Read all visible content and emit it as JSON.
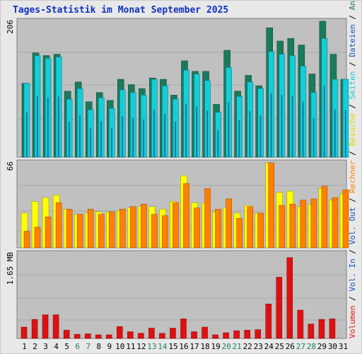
{
  "chart_data": [
    {
      "type": "bar",
      "title": "Tages-Statistik im Monat September 2025",
      "categories": [
        "1",
        "2",
        "3",
        "4",
        "5",
        "6",
        "7",
        "8",
        "9",
        "10",
        "11",
        "12",
        "13",
        "14",
        "15",
        "16",
        "17",
        "18",
        "19",
        "20",
        "21",
        "22",
        "23",
        "24",
        "25",
        "26",
        "27",
        "28",
        "29",
        "30",
        "31"
      ],
      "weekend_days": [
        "6",
        "7",
        "13",
        "14",
        "20",
        "21",
        "27",
        "28"
      ],
      "ymax_label": "206",
      "ymax": 206,
      "series": [
        {
          "name": "Anfragen",
          "color": "#1a7a5c",
          "values": [
            112,
            158,
            154,
            156,
            100,
            114,
            84,
            98,
            86,
            118,
            110,
            104,
            120,
            118,
            94,
            146,
            130,
            130,
            80,
            162,
            100,
            124,
            108,
            196,
            176,
            180,
            170,
            126,
            206,
            156,
            118
          ]
        },
        {
          "name": "Dateien",
          "color": "#14ced8",
          "values": [
            112,
            154,
            150,
            152,
            88,
            104,
            72,
            90,
            74,
            102,
            98,
            94,
            118,
            108,
            88,
            132,
            126,
            116,
            68,
            136,
            92,
            114,
            104,
            160,
            156,
            154,
            138,
            98,
            180,
            118,
            118
          ]
        },
        {
          "name": "Seiten",
          "color": "#0090d0",
          "values": [
            110,
            150,
            146,
            148,
            86,
            102,
            70,
            88,
            72,
            100,
            96,
            92,
            116,
            106,
            86,
            130,
            124,
            114,
            66,
            134,
            90,
            112,
            102,
            156,
            152,
            150,
            136,
            96,
            176,
            116,
            116
          ]
        }
      ],
      "legend": [
        "Anfragen",
        "Dateien",
        "Seiten"
      ]
    },
    {
      "type": "bar",
      "categories": [
        "1",
        "2",
        "3",
        "4",
        "5",
        "6",
        "7",
        "8",
        "9",
        "10",
        "11",
        "12",
        "13",
        "14",
        "15",
        "16",
        "17",
        "18",
        "19",
        "20",
        "21",
        "22",
        "23",
        "24",
        "25",
        "26",
        "27",
        "28",
        "29",
        "30",
        "31"
      ],
      "ymax_label": "66",
      "ymax": 66,
      "series": [
        {
          "name": "Besuche",
          "color": "#ffff00",
          "values": [
            27,
            36,
            39,
            41,
            30,
            26,
            27,
            28,
            28,
            29,
            31,
            32,
            32,
            30,
            36,
            56,
            35,
            35,
            28,
            31,
            27,
            33,
            27,
            66,
            43,
            44,
            32,
            34,
            46,
            37,
            42
          ]
        },
        {
          "name": "Rechner",
          "color": "#ff8000",
          "values": [
            13,
            16,
            24,
            35,
            30,
            26,
            30,
            26,
            28,
            30,
            32,
            34,
            26,
            25,
            35,
            50,
            31,
            46,
            30,
            38,
            23,
            32,
            27,
            66,
            33,
            34,
            37,
            38,
            48,
            39,
            45
          ]
        }
      ],
      "legend": [
        "Besuche",
        "Rechner"
      ]
    },
    {
      "type": "bar",
      "ymax_label": "1.65 MB",
      "categories": [
        "1",
        "2",
        "3",
        "4",
        "5",
        "6",
        "7",
        "8",
        "9",
        "10",
        "11",
        "12",
        "13",
        "14",
        "15",
        "16",
        "17",
        "18",
        "19",
        "20",
        "21",
        "22",
        "23",
        "24",
        "25",
        "26",
        "27",
        "28",
        "29",
        "30",
        "31"
      ],
      "series": [
        {
          "name": "Volumen",
          "color": "#e01010",
          "values": [
            0.22,
            0.37,
            0.46,
            0.46,
            0.16,
            0.08,
            0.09,
            0.07,
            0.07,
            0.23,
            0.13,
            0.1,
            0.2,
            0.1,
            0.2,
            0.38,
            0.13,
            0.22,
            0.07,
            0.11,
            0.15,
            0.16,
            0.17,
            0.67,
            1.19,
            1.57,
            0.55,
            0.28,
            0.37,
            0.38,
            0.0
          ]
        }
      ],
      "legend": [
        "Volumen",
        "Vol. In",
        "Vol. Out"
      ]
    }
  ],
  "legend_text": {
    "top": [
      {
        "text": "Anfragen",
        "color": "#1a7a5c"
      },
      {
        "text": "Dateien",
        "color": "#1050c0"
      },
      {
        "text": "Seiten",
        "color": "#14c8d8"
      },
      {
        "text": "Besuche",
        "color": "#d8d800"
      },
      {
        "text": "Rechner",
        "color": "#ff8000"
      },
      {
        "text": "Vol. Out",
        "color": "#1050c0"
      },
      {
        "text": "Vol. In",
        "color": "#1050c0"
      },
      {
        "text": "Volumen",
        "color": "#e01010"
      }
    ],
    "separator": " / "
  },
  "colors": {
    "panel_bg": "#c0c0c0",
    "grid": "#a8a8a8",
    "weekend_label": "#208060",
    "weekday_label": "#000000"
  }
}
